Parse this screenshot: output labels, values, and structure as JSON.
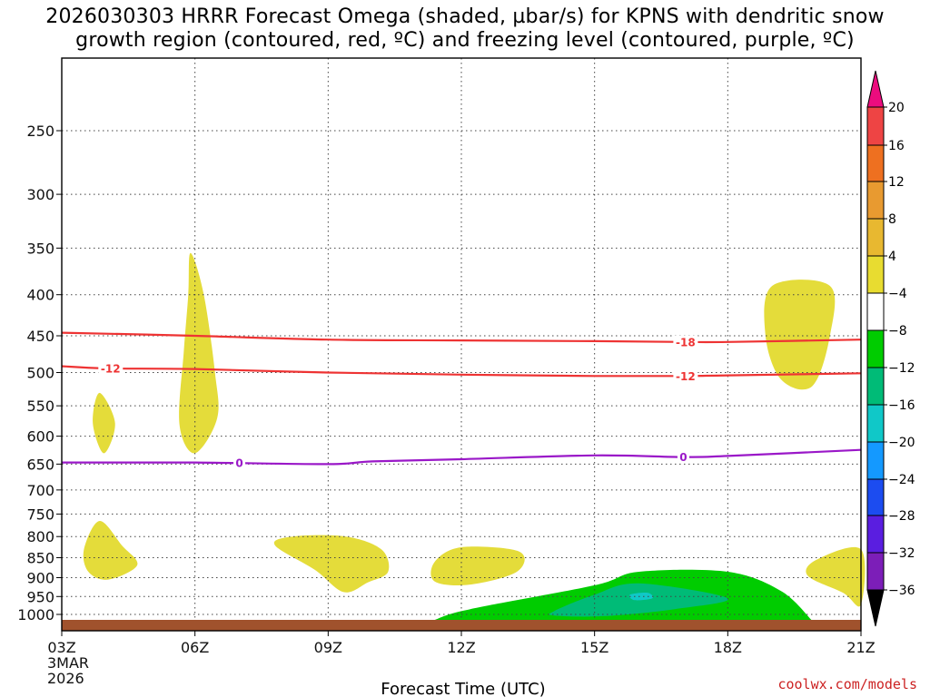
{
  "title_line1": "2026030303 HRRR Forecast Omega (shaded, µbar/s) for KPNS with dendritic snow",
  "title_line2": "growth region (contoured, red, ºC) and freezing level (contoured, purple, ºC)",
  "xlabel": "Forecast Time (UTC)",
  "date_label_1": "3MAR",
  "date_label_2": "2026",
  "credit": "coolwx.com/models",
  "chart_data": {
    "type": "contour",
    "title": "2026030303 HRRR Forecast Omega (shaded, µbar/s) for KPNS with dendritic snow growth region (contoured, red, ºC) and freezing level (contoured, purple, ºC)",
    "xlabel": "Forecast Time (UTC)",
    "ylabel": "",
    "x_ticks": [
      {
        "hour": 3,
        "label": "03Z"
      },
      {
        "hour": 6,
        "label": "06Z"
      },
      {
        "hour": 9,
        "label": "09Z"
      },
      {
        "hour": 12,
        "label": "12Z"
      },
      {
        "hour": 15,
        "label": "15Z"
      },
      {
        "hour": 18,
        "label": "18Z"
      },
      {
        "hour": 21,
        "label": "21Z"
      }
    ],
    "xlim": [
      3,
      21
    ],
    "y_ticks": [
      250,
      300,
      350,
      400,
      450,
      500,
      550,
      600,
      650,
      700,
      750,
      800,
      850,
      900,
      950,
      1000
    ],
    "ylim_hPa": [
      1020,
      200
    ],
    "y_scale": "log-pressure",
    "grid": true,
    "colorbar": {
      "unit": "µbar/s",
      "labels": [
        20,
        16,
        12,
        8,
        4,
        -4,
        -8,
        -12,
        -16,
        -20,
        -24,
        -28,
        -32,
        -36
      ],
      "colors": [
        "#ec0c7e",
        "#ee4444",
        "#ee7020",
        "#e89a30",
        "#e8b830",
        "#e8dc30",
        "#ffffff",
        "#00cc00",
        "#00bb77",
        "#10c8c8",
        "#1499ff",
        "#1c4cf0",
        "#5a1ee0",
        "#7c1eb8",
        "#a014b8",
        "#a8a8a8",
        "#000000"
      ]
    },
    "contours": [
      {
        "label": "-18",
        "color": "#ee3333",
        "points": [
          [
            3,
            446
          ],
          [
            6,
            450
          ],
          [
            9,
            455
          ],
          [
            12,
            456
          ],
          [
            15,
            457
          ],
          [
            17,
            458
          ],
          [
            18,
            458
          ],
          [
            21,
            455
          ]
        ]
      },
      {
        "label": "-12",
        "color": "#ee3333",
        "points": [
          [
            3,
            491
          ],
          [
            4,
            494
          ],
          [
            6,
            495
          ],
          [
            9,
            500
          ],
          [
            12,
            503
          ],
          [
            15,
            505
          ],
          [
            17,
            505
          ],
          [
            18,
            504
          ],
          [
            21,
            501
          ]
        ]
      },
      {
        "label": "0",
        "color": "#9a18c8",
        "points": [
          [
            3,
            647
          ],
          [
            4,
            647
          ],
          [
            6,
            647
          ],
          [
            9,
            650
          ],
          [
            10,
            645
          ],
          [
            12,
            641
          ],
          [
            15,
            634
          ],
          [
            17,
            637
          ],
          [
            18,
            635
          ],
          [
            21,
            624
          ]
        ]
      }
    ],
    "shaded_regions": [
      {
        "value": "4 to 8",
        "points": [
          [
            3.85,
            530
          ],
          [
            4.2,
            578
          ],
          [
            3.95,
            630
          ],
          [
            3.7,
            578
          ]
        ]
      },
      {
        "value": "4 to 8",
        "points": [
          [
            5.9,
            355
          ],
          [
            6.2,
            400
          ],
          [
            6.45,
            500
          ],
          [
            6.5,
            570
          ],
          [
            6,
            630
          ],
          [
            5.65,
            580
          ],
          [
            5.75,
            470
          ],
          [
            5.85,
            400
          ]
        ]
      },
      {
        "value": "4 to 8",
        "points": [
          [
            3.5,
            830
          ],
          [
            3.85,
            765
          ],
          [
            4.35,
            820
          ],
          [
            4.7,
            868
          ],
          [
            4.05,
            905
          ],
          [
            3.6,
            885
          ]
        ]
      },
      {
        "value": "4 to 8",
        "points": [
          [
            7.8,
            820
          ],
          [
            8.2,
            800
          ],
          [
            9.4,
            800
          ],
          [
            10.2,
            830
          ],
          [
            10.35,
            885
          ],
          [
            9.9,
            912
          ],
          [
            9.35,
            938
          ],
          [
            8.7,
            880
          ]
        ]
      },
      {
        "value": "4 to 8",
        "points": [
          [
            11.4,
            860
          ],
          [
            12,
            825
          ],
          [
            13.3,
            835
          ],
          [
            13.25,
            885
          ],
          [
            12.2,
            918
          ],
          [
            11.4,
            910
          ]
        ]
      },
      {
        "value": "4 to 8",
        "points": [
          [
            19,
            390
          ],
          [
            20.3,
            390
          ],
          [
            20.3,
            450
          ],
          [
            19.9,
            520
          ],
          [
            19.2,
            510
          ],
          [
            18.85,
            450
          ]
        ]
      },
      {
        "value": "4 to 8",
        "points": [
          [
            20,
            855
          ],
          [
            21,
            830
          ],
          [
            21,
            972
          ],
          [
            20.6,
            940
          ],
          [
            19.8,
            895
          ]
        ]
      },
      {
        "value": "-8 to -4",
        "points": [
          [
            11.4,
            1016
          ],
          [
            12.2,
            985
          ],
          [
            15,
            920
          ],
          [
            16,
            885
          ],
          [
            18,
            885
          ],
          [
            19.2,
            935
          ],
          [
            19.9,
            1018
          ],
          [
            19.9,
            1020
          ],
          [
            11.4,
            1020
          ]
        ]
      },
      {
        "value": "-12 to -8",
        "points": [
          [
            14.1,
            990
          ],
          [
            15,
            945
          ],
          [
            16,
            915
          ],
          [
            18,
            955
          ],
          [
            16.8,
            985
          ],
          [
            15.2,
            1005
          ],
          [
            14.1,
            1003
          ]
        ]
      },
      {
        "value": "-16 to -12",
        "points": [
          [
            15.8,
            945
          ],
          [
            16.2,
            940
          ],
          [
            16.3,
            955
          ],
          [
            15.9,
            960
          ]
        ]
      }
    ]
  }
}
